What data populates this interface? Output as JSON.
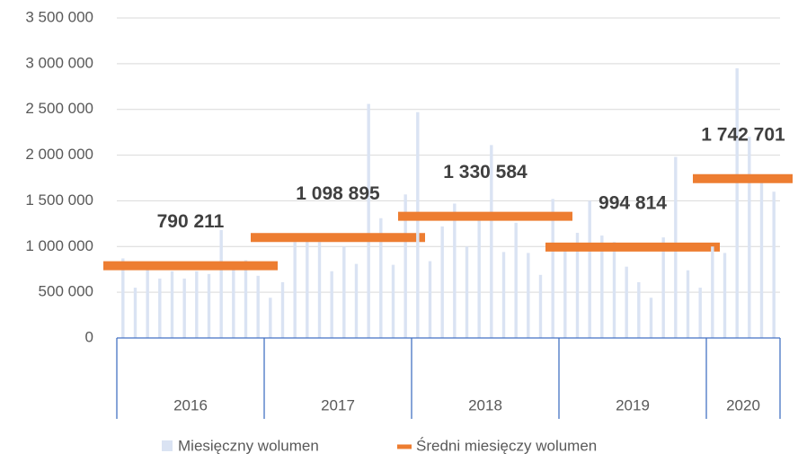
{
  "chart_data": {
    "type": "bar_line",
    "categories": [
      "2016",
      "2017",
      "2018",
      "2019",
      "2020"
    ],
    "series": [
      {
        "name": "Miesięczny wolumen",
        "color": "#dae3f3",
        "values": [
          [
            870000,
            550000,
            780000,
            650000,
            730000,
            650000,
            730000,
            700000,
            1180000,
            800000,
            850000,
            680000
          ],
          [
            440000,
            610000,
            1050000,
            1080000,
            1050000,
            730000,
            1000000,
            810000,
            2560000,
            1310000,
            800000,
            1570000
          ],
          [
            2470000,
            840000,
            1220000,
            1470000,
            1000000,
            1290000,
            2110000,
            940000,
            1260000,
            930000,
            690000,
            1520000
          ],
          [
            1000000,
            1150000,
            1500000,
            1120000,
            1050000,
            780000,
            610000,
            440000,
            1100000,
            1980000,
            740000,
            550000
          ],
          [
            1000000,
            930000,
            2950000,
            2200000,
            1700000,
            1600000
          ]
        ]
      },
      {
        "name": "Średni miesięczy wolumen",
        "color": "#ed7d31",
        "values": [
          790211,
          1098895,
          1330584,
          994814,
          1742701
        ],
        "value_labels": [
          "790 211",
          "1 098 895",
          "1 330 584",
          "994 814",
          "1 742 701"
        ]
      }
    ],
    "ylim": [
      0,
      3500000
    ],
    "yticks": [
      0,
      {
        "value": 500000,
        "label": "500 000"
      },
      {
        "value": 1000000,
        "label": "1 000 000"
      },
      {
        "value": 1500000,
        "label": "1 500 000"
      },
      {
        "value": 2000000,
        "label": "2 000 000"
      },
      {
        "value": 2500000,
        "label": "2 500 000"
      },
      {
        "value": 3000000,
        "label": "3 000 000"
      },
      {
        "value": 3500000,
        "label": "3 500 000"
      }
    ],
    "grid": true
  }
}
